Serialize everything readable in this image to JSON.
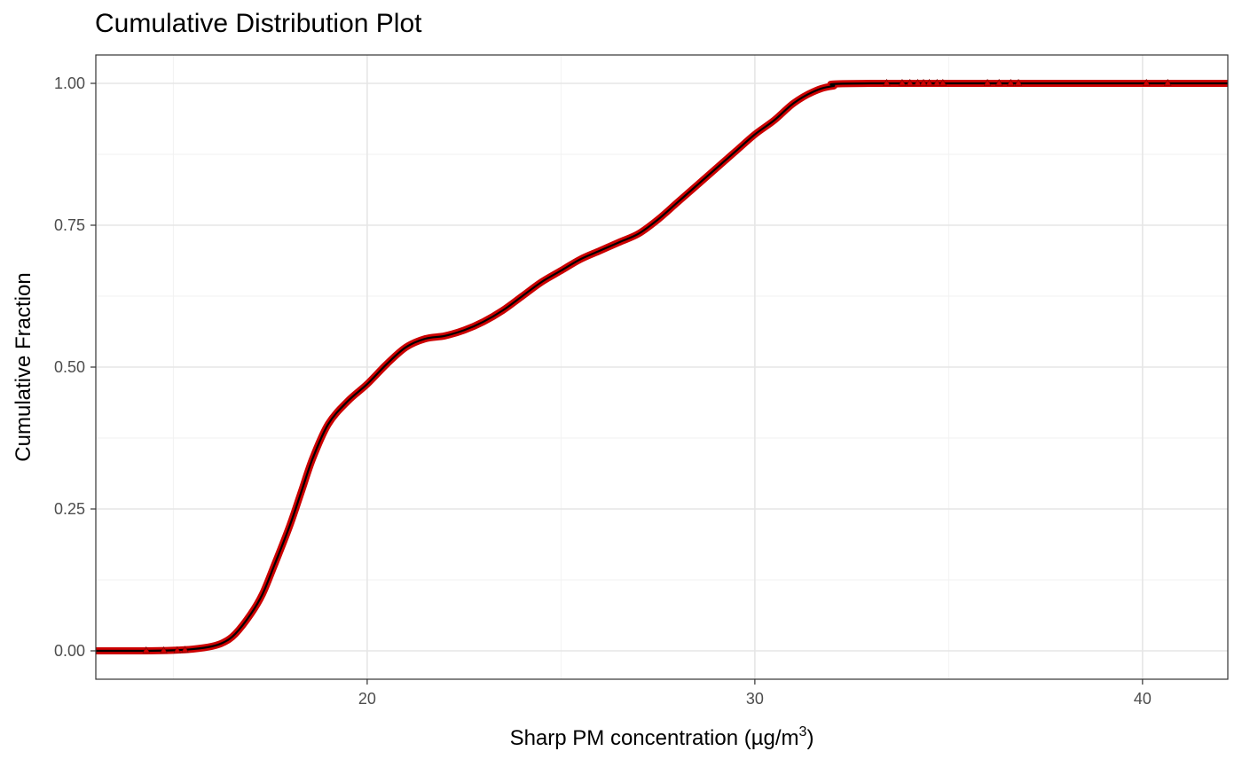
{
  "chart_data": {
    "type": "line",
    "title": "Cumulative Distribution Plot",
    "xlabel": "Sharp PM concentration (µg/m",
    "xlabel_superscript": "3",
    "xlabel_close": ")",
    "ylabel": "Cumulative Fraction",
    "xlim": [
      13.0,
      42.2
    ],
    "ylim": [
      -0.05,
      1.05
    ],
    "x_ticks": [
      20,
      30,
      40
    ],
    "x_tick_labels": [
      "20",
      "30",
      "40"
    ],
    "y_ticks": [
      0,
      0.25,
      0.5,
      0.75,
      1.0
    ],
    "y_tick_labels": [
      "0.00",
      "0.25",
      "0.50",
      "0.75",
      "1.00"
    ],
    "grid": true,
    "series": [
      {
        "role": "ecdf-line",
        "color": "#000000",
        "points": [
          [
            13.0,
            0.0
          ],
          [
            14.3,
            0.0
          ],
          [
            15.0,
            0.001
          ],
          [
            15.5,
            0.003
          ],
          [
            16.0,
            0.008
          ],
          [
            16.3,
            0.015
          ],
          [
            16.6,
            0.03
          ],
          [
            17.0,
            0.065
          ],
          [
            17.3,
            0.1
          ],
          [
            17.6,
            0.15
          ],
          [
            18.0,
            0.22
          ],
          [
            18.3,
            0.28
          ],
          [
            18.6,
            0.34
          ],
          [
            19.0,
            0.4
          ],
          [
            19.5,
            0.44
          ],
          [
            20.0,
            0.47
          ],
          [
            20.5,
            0.505
          ],
          [
            21.0,
            0.535
          ],
          [
            21.5,
            0.55
          ],
          [
            22.0,
            0.555
          ],
          [
            22.5,
            0.565
          ],
          [
            23.0,
            0.58
          ],
          [
            23.5,
            0.6
          ],
          [
            24.0,
            0.625
          ],
          [
            24.5,
            0.65
          ],
          [
            25.0,
            0.67
          ],
          [
            25.5,
            0.69
          ],
          [
            26.0,
            0.705
          ],
          [
            26.5,
            0.72
          ],
          [
            27.0,
            0.735
          ],
          [
            27.5,
            0.76
          ],
          [
            28.0,
            0.79
          ],
          [
            28.5,
            0.82
          ],
          [
            29.0,
            0.85
          ],
          [
            29.5,
            0.88
          ],
          [
            30.0,
            0.91
          ],
          [
            30.5,
            0.935
          ],
          [
            31.0,
            0.965
          ],
          [
            31.5,
            0.985
          ],
          [
            32.0,
            0.995
          ],
          [
            33.0,
            1.0
          ],
          [
            42.2,
            1.0
          ]
        ]
      },
      {
        "role": "ecdf-points",
        "color": "#cc0000",
        "marker": "triangle"
      }
    ],
    "outlier_points": [
      [
        14.3,
        0.0
      ],
      [
        14.75,
        0.0
      ],
      [
        15.1,
        0.0
      ],
      [
        15.3,
        0.001
      ],
      [
        33.4,
        1.0
      ],
      [
        33.8,
        1.0
      ],
      [
        34.0,
        1.0
      ],
      [
        34.2,
        1.0
      ],
      [
        34.35,
        1.0
      ],
      [
        34.5,
        1.0
      ],
      [
        34.7,
        1.0
      ],
      [
        34.85,
        1.0
      ],
      [
        36.0,
        1.0
      ],
      [
        36.3,
        1.0
      ],
      [
        36.6,
        1.0
      ],
      [
        36.8,
        1.0
      ],
      [
        40.1,
        1.0
      ],
      [
        40.65,
        1.0
      ]
    ]
  },
  "colors": {
    "line": "#000000",
    "points": "#cc0000",
    "grid_major": "#e6e6e6",
    "grid_minor": "#f2f2f2",
    "panel_border": "#333333"
  }
}
